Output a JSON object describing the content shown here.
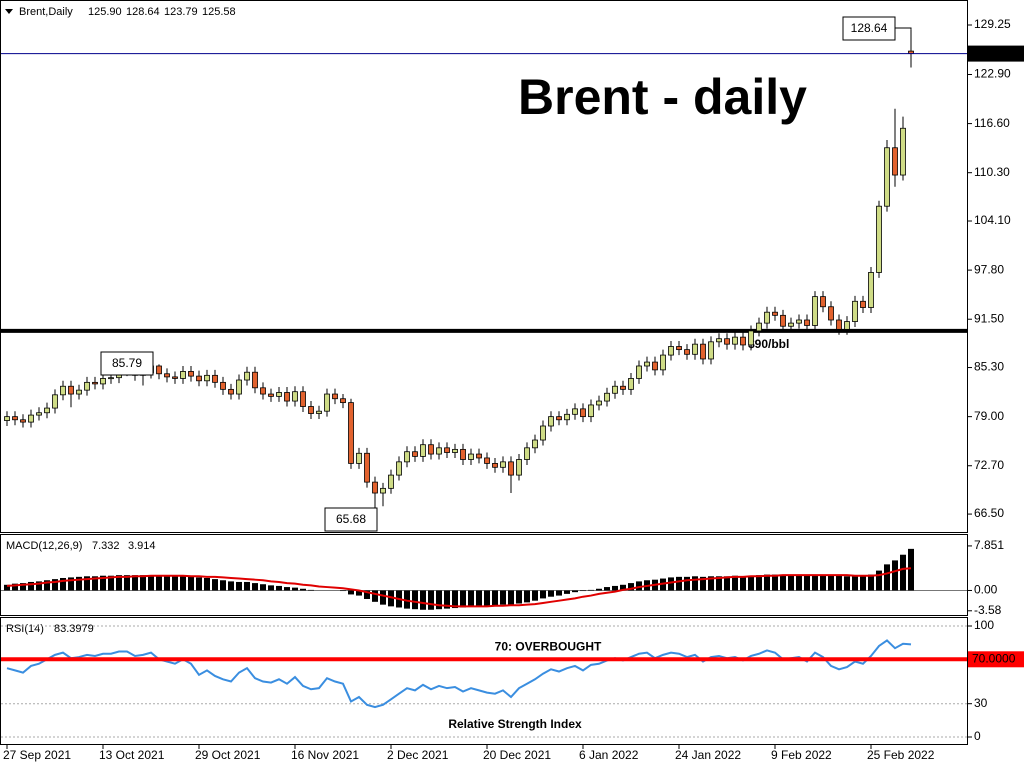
{
  "chart_data": [
    {
      "type": "candlestick",
      "header": {
        "symbol": "Brent,Daily",
        "ohlc": [
          "125.90",
          "128.64",
          "123.79",
          "125.58"
        ]
      },
      "title": "Brent - daily",
      "categories": [
        "27 Sep 2021",
        null,
        null,
        null,
        null,
        null,
        null,
        null,
        null,
        null,
        null,
        null,
        "13 Oct 2021",
        null,
        null,
        null,
        null,
        null,
        null,
        null,
        null,
        null,
        null,
        null,
        "29 Oct 2021",
        null,
        null,
        null,
        null,
        null,
        null,
        null,
        null,
        null,
        null,
        null,
        "16 Nov 2021",
        null,
        null,
        null,
        null,
        null,
        null,
        null,
        null,
        null,
        null,
        null,
        "2 Dec 2021",
        null,
        null,
        null,
        null,
        null,
        null,
        null,
        null,
        null,
        null,
        null,
        "20 Dec 2021",
        null,
        null,
        null,
        null,
        null,
        null,
        null,
        null,
        null,
        null,
        null,
        "6 Jan 2022",
        null,
        null,
        null,
        null,
        null,
        null,
        null,
        null,
        null,
        null,
        null,
        "24 Jan 2022",
        null,
        null,
        null,
        null,
        null,
        null,
        null,
        null,
        null,
        null,
        null,
        "9 Feb 2022",
        null,
        null,
        null,
        null,
        null,
        null,
        null,
        null,
        null,
        null,
        null,
        "25 Feb 2022",
        null,
        null,
        null,
        null,
        null
      ],
      "open": [
        78.5,
        79.0,
        78.6,
        78.3,
        79.2,
        79.5,
        80.1,
        81.8,
        82.9,
        81.9,
        82.4,
        83.4,
        83.2,
        83.9,
        84.0,
        84.9,
        85.0,
        84.3,
        84.6,
        85.5,
        84.5,
        84.1,
        83.9,
        84.8,
        84.2,
        83.6,
        84.3,
        83.4,
        82.5,
        81.9,
        83.7,
        84.7,
        82.7,
        81.9,
        81.6,
        82.1,
        81.0,
        82.2,
        80.3,
        79.4,
        79.7,
        81.9,
        81.3,
        80.8,
        73.0,
        74.3,
        70.6,
        69.2,
        69.8,
        71.5,
        73.2,
        74.5,
        73.9,
        75.4,
        74.2,
        75.0,
        74.4,
        74.8,
        73.5,
        74.2,
        73.7,
        73.0,
        72.5,
        73.2,
        71.5,
        73.5,
        75.0,
        76.0,
        77.8,
        79.0,
        78.6,
        79.3,
        80.0,
        79.0,
        80.5,
        81.0,
        82.0,
        82.9,
        82.5,
        83.9,
        85.5,
        86.0,
        85.0,
        86.9,
        88.0,
        87.6,
        87.0,
        88.3,
        86.4,
        88.6,
        89.0,
        88.3,
        89.2,
        88.2,
        90.0,
        91.0,
        92.4,
        92.0,
        90.6,
        91.0,
        91.4,
        90.7,
        94.4,
        93.1,
        91.4,
        90.2,
        91.2,
        93.8,
        93.0,
        97.5,
        106.0,
        113.5,
        110.0,
        125.9
      ],
      "high": [
        79.7,
        79.7,
        79.3,
        79.9,
        80.2,
        80.8,
        82.5,
        83.6,
        83.6,
        83.1,
        84.1,
        84.1,
        84.6,
        84.7,
        85.6,
        85.79,
        85.7,
        85.3,
        85.7,
        85.7,
        85.2,
        84.8,
        85.5,
        85.5,
        84.9,
        85.0,
        85.0,
        84.1,
        83.2,
        84.4,
        85.4,
        85.4,
        83.4,
        82.6,
        82.8,
        82.8,
        82.9,
        82.9,
        81.0,
        80.4,
        82.6,
        82.6,
        81.9,
        81.3,
        75.0,
        75.0,
        71.3,
        70.5,
        72.2,
        73.9,
        75.2,
        75.2,
        76.1,
        76.1,
        75.7,
        75.7,
        75.5,
        75.5,
        74.9,
        74.9,
        74.4,
        73.7,
        73.9,
        73.9,
        74.2,
        75.7,
        76.7,
        78.5,
        79.7,
        79.7,
        80.0,
        80.7,
        80.7,
        81.2,
        81.7,
        82.7,
        83.6,
        83.6,
        84.6,
        86.2,
        86.7,
        86.7,
        87.6,
        88.7,
        88.7,
        88.3,
        89.0,
        89.0,
        89.3,
        89.7,
        89.7,
        89.9,
        89.9,
        90.7,
        91.7,
        93.1,
        93.1,
        92.7,
        91.7,
        92.1,
        92.1,
        95.1,
        95.1,
        93.8,
        92.1,
        91.9,
        94.5,
        94.5,
        98.2,
        106.7,
        114.5,
        118.5,
        117.5,
        128.64
      ],
      "low": [
        77.8,
        77.9,
        77.6,
        77.6,
        78.5,
        78.8,
        79.4,
        81.1,
        80.2,
        81.2,
        81.7,
        82.5,
        82.5,
        83.2,
        83.3,
        84.2,
        83.6,
        83.0,
        83.9,
        83.8,
        83.4,
        83.2,
        83.2,
        83.5,
        82.9,
        82.9,
        82.7,
        81.8,
        81.2,
        81.2,
        83.0,
        82.0,
        81.2,
        80.9,
        80.9,
        80.3,
        80.3,
        79.6,
        78.7,
        78.7,
        79.0,
        80.6,
        80.1,
        72.3,
        72.3,
        69.9,
        65.68,
        67.5,
        69.1,
        70.8,
        72.5,
        73.2,
        73.2,
        73.5,
        73.5,
        73.7,
        73.7,
        72.8,
        72.8,
        73.0,
        72.3,
        71.8,
        71.8,
        69.2,
        70.8,
        72.8,
        74.3,
        75.3,
        77.1,
        77.9,
        77.9,
        78.6,
        78.3,
        78.3,
        79.8,
        80.3,
        81.3,
        81.8,
        81.8,
        83.2,
        84.8,
        84.3,
        84.3,
        86.2,
        86.9,
        86.3,
        86.3,
        85.7,
        85.7,
        87.9,
        87.6,
        87.6,
        87.5,
        87.5,
        89.3,
        90.3,
        91.3,
        89.9,
        89.9,
        90.3,
        90.0,
        90.0,
        92.4,
        90.7,
        89.5,
        89.5,
        90.5,
        92.3,
        92.3,
        96.8,
        105.3,
        108.5,
        109.3,
        123.79
      ],
      "close": [
        79.0,
        78.6,
        78.3,
        79.2,
        79.5,
        80.1,
        81.8,
        82.9,
        81.9,
        82.4,
        83.4,
        83.2,
        83.9,
        84.0,
        84.9,
        85.0,
        84.3,
        84.6,
        85.5,
        84.5,
        84.1,
        83.9,
        84.8,
        84.2,
        83.6,
        84.3,
        83.4,
        82.5,
        81.9,
        83.7,
        84.7,
        82.7,
        81.9,
        81.6,
        82.1,
        81.0,
        82.2,
        80.3,
        79.4,
        79.7,
        81.9,
        81.3,
        80.8,
        73.0,
        74.3,
        70.6,
        69.2,
        69.8,
        71.5,
        73.2,
        74.5,
        73.9,
        75.4,
        74.2,
        75.0,
        74.4,
        74.8,
        73.5,
        74.2,
        73.7,
        73.0,
        72.5,
        73.2,
        71.5,
        73.5,
        75.0,
        76.0,
        77.8,
        79.0,
        78.6,
        79.3,
        80.0,
        79.0,
        80.5,
        81.0,
        82.0,
        82.9,
        82.5,
        83.9,
        85.5,
        86.0,
        85.0,
        86.9,
        88.0,
        87.6,
        87.0,
        88.3,
        86.4,
        88.6,
        89.0,
        88.3,
        89.2,
        88.2,
        90.0,
        91.0,
        92.4,
        92.0,
        90.6,
        91.0,
        91.4,
        90.7,
        94.4,
        93.1,
        91.4,
        90.2,
        91.2,
        93.8,
        93.0,
        97.5,
        106.0,
        113.5,
        110.0,
        116.0,
        125.58
      ],
      "up_color": "#cfdc86",
      "down_color": "#e2622e",
      "last_price_color": "#00008b",
      "ylim": [
        64.2,
        132.2
      ],
      "yticks": [
        129.25,
        {
          "value": 122.9,
          "label": "122.90"
        },
        {
          "value": 116.6,
          "label": "116.60"
        },
        {
          "value": 110.3,
          "label": "110.30"
        },
        {
          "value": 104.1,
          "label": "104.10"
        },
        {
          "value": 97.8,
          "label": "97.80"
        },
        {
          "value": 91.5,
          "label": "91.50"
        },
        {
          "value": 85.3,
          "label": "85.30"
        },
        {
          "value": 79.0,
          "label": "79.00"
        },
        {
          "value": 72.7,
          "label": "72.70"
        },
        {
          "value": 66.5,
          "label": "66.50"
        }
      ],
      "hline": {
        "value": 90,
        "label": "$90/bbl",
        "color": "#000000"
      }
    },
    {
      "type": "macd",
      "label": "MACD(12,26,9)",
      "histogram": [
        1.0,
        1.2,
        1.3,
        1.5,
        1.6,
        1.8,
        2.0,
        2.2,
        2.3,
        2.4,
        2.5,
        2.5,
        2.6,
        2.6,
        2.7,
        2.7,
        2.7,
        2.7,
        2.7,
        2.7,
        2.6,
        2.5,
        2.5,
        2.4,
        2.3,
        2.2,
        2.0,
        1.8,
        1.6,
        1.5,
        1.5,
        1.3,
        1.1,
        0.9,
        0.8,
        0.6,
        0.5,
        0.3,
        0.1,
        0.0,
        0.0,
        0.0,
        -0.1,
        -0.7,
        -0.9,
        -1.5,
        -2.0,
        -2.5,
        -2.8,
        -3.0,
        -3.2,
        -3.3,
        -3.4,
        -3.4,
        -3.3,
        -3.2,
        -3.1,
        -3.0,
        -2.9,
        -2.8,
        -2.7,
        -2.6,
        -2.5,
        -2.5,
        -2.3,
        -2.1,
        -1.8,
        -1.4,
        -1.1,
        -0.9,
        -0.6,
        -0.3,
        -0.1,
        0.1,
        0.3,
        0.6,
        0.8,
        1.0,
        1.3,
        1.6,
        1.8,
        1.9,
        2.1,
        2.3,
        2.4,
        2.4,
        2.5,
        2.4,
        2.5,
        2.5,
        2.5,
        2.6,
        2.5,
        2.6,
        2.7,
        2.8,
        2.8,
        2.7,
        2.7,
        2.7,
        2.6,
        2.8,
        2.8,
        2.7,
        2.6,
        2.5,
        2.6,
        2.6,
        2.8,
        3.5,
        4.6,
        5.3,
        6.3,
        7.332
      ],
      "signal": [
        0.8,
        0.9,
        1.0,
        1.1,
        1.2,
        1.4,
        1.5,
        1.7,
        1.8,
        1.9,
        2.0,
        2.1,
        2.2,
        2.3,
        2.4,
        2.4,
        2.5,
        2.5,
        2.6,
        2.6,
        2.6,
        2.6,
        2.6,
        2.5,
        2.5,
        2.4,
        2.4,
        2.3,
        2.2,
        2.1,
        2.0,
        1.9,
        1.8,
        1.6,
        1.5,
        1.3,
        1.2,
        1.0,
        0.9,
        0.7,
        0.6,
        0.5,
        0.4,
        0.2,
        0.0,
        -0.3,
        -0.6,
        -0.9,
        -1.2,
        -1.5,
        -1.8,
        -2.0,
        -2.2,
        -2.4,
        -2.6,
        -2.7,
        -2.8,
        -2.8,
        -2.8,
        -2.8,
        -2.8,
        -2.7,
        -2.7,
        -2.6,
        -2.6,
        -2.5,
        -2.4,
        -2.2,
        -2.0,
        -1.8,
        -1.6,
        -1.4,
        -1.1,
        -0.9,
        -0.6,
        -0.4,
        -0.2,
        0.1,
        0.3,
        0.6,
        0.8,
        1.0,
        1.2,
        1.4,
        1.6,
        1.8,
        1.9,
        2.0,
        2.1,
        2.2,
        2.3,
        2.4,
        2.4,
        2.5,
        2.5,
        2.6,
        2.6,
        2.7,
        2.7,
        2.7,
        2.7,
        2.7,
        2.7,
        2.7,
        2.7,
        2.7,
        2.6,
        2.6,
        2.6,
        2.7,
        3.0,
        3.4,
        3.8,
        3.914
      ],
      "hist_color": "#000000",
      "signal_color": "#e00000",
      "ylim": [
        -4.5,
        9.6
      ],
      "yticks": [
        7.851,
        {
          "value": 0,
          "label": "0.00"
        },
        -3.58
      ]
    },
    {
      "type": "line",
      "label": "RSI(14)",
      "subtitle": "Relative Strength Index",
      "values": [
        62,
        60,
        58,
        64,
        66,
        70,
        74,
        76,
        71,
        72,
        74,
        73,
        75,
        75,
        77,
        77,
        73,
        74,
        76,
        70,
        68,
        66,
        70,
        66,
        56,
        60,
        55,
        52,
        50,
        58,
        62,
        53,
        50,
        49,
        52,
        48,
        54,
        46,
        43,
        44,
        53,
        50,
        48,
        32,
        36,
        29,
        27,
        29,
        34,
        39,
        44,
        42,
        47,
        43,
        46,
        44,
        45,
        41,
        44,
        42,
        40,
        39,
        42,
        36,
        44,
        48,
        52,
        57,
        61,
        59,
        62,
        64,
        60,
        65,
        66,
        69,
        71,
        69,
        72,
        75,
        76,
        71,
        74,
        76,
        75,
        72,
        74,
        68,
        72,
        73,
        71,
        72,
        69,
        73,
        75,
        78,
        76,
        70,
        71,
        72,
        68,
        76,
        72,
        64,
        61,
        63,
        68,
        66,
        73,
        82,
        87,
        80,
        84,
        83.3979
      ],
      "color": "#3a8ee0",
      "level": {
        "value": 70,
        "label": "70.0000",
        "text": "70: OVERBOUGHT",
        "color": "#ff0000"
      },
      "ylim": [
        -7.2,
        106.3
      ],
      "yticks": [
        100,
        30,
        0
      ],
      "grid": true
    }
  ]
}
